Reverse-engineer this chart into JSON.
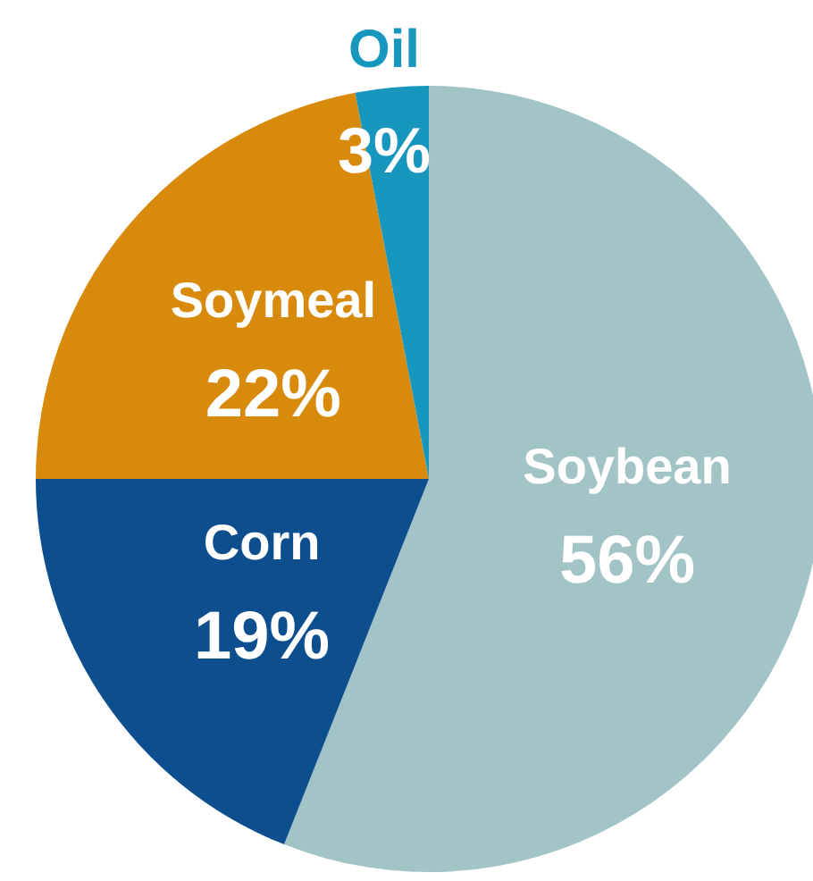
{
  "chart_data": {
    "type": "pie",
    "categories": [
      "Soybean",
      "Corn",
      "Soymeal",
      "Oil"
    ],
    "values": [
      56,
      19,
      22,
      3
    ],
    "value_labels": [
      "56%",
      "19%",
      "22%",
      "3%"
    ],
    "colors": [
      "#a3c4c7",
      "#0d4f8e",
      "#d88a0c",
      "#1797bd"
    ],
    "legend": false
  }
}
